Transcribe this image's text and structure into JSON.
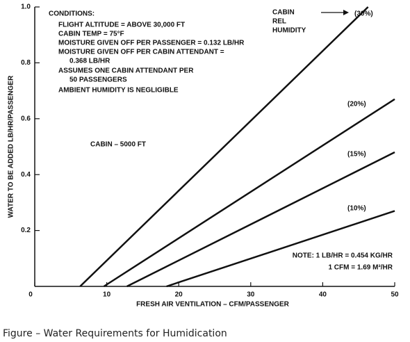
{
  "chart_data": {
    "type": "line",
    "x_label": "FRESH AIR VENTILATION – CFM/PASSENGER",
    "y_label": "WATER TO BE ADDED LB/HR/PASSENGER",
    "caption": "Figure – Water Requirements for Humidication",
    "legend_title": [
      "CABIN",
      "REL",
      "HUMIDITY"
    ],
    "conditions": [
      "CONDITIONS:",
      "FLIGHT ALTITUDE = ABOVE 30,000 FT",
      "CABIN TEMP = 75°F",
      "MOISTURE GIVEN OFF PER PASSENGER = 0.132 LB/HR",
      "MOISTURE GIVEN OFF PER CABIN ATTENDANT =",
      "0.368 LB/HR",
      "ASSUMES ONE CABIN ATTENDANT PER",
      "50 PASSENGERS",
      "AMBIENT HUMIDITY IS NEGLIGIBLE"
    ],
    "cabin_note": "CABIN – 5000 FT",
    "notes": [
      "NOTE: 1 LB/HR = 0.454 KG/HR",
      "1 CFM = 1.69 M³/HR"
    ],
    "xlim": [
      0,
      50
    ],
    "xticks": [
      0,
      10,
      20,
      30,
      40,
      50
    ],
    "ylim": [
      0,
      1
    ],
    "yticks": [
      0.2,
      0.4,
      0.6,
      0.8,
      {
        "value": 1,
        "label": "1.0"
      }
    ],
    "color": "#111111",
    "series": [
      {
        "name": "(30%)",
        "x": [
          6.3,
          46.3
        ],
        "values": [
          0,
          1
        ]
      },
      {
        "name": "(20%)",
        "x": [
          9.6,
          50
        ],
        "values": [
          0,
          0.67
        ]
      },
      {
        "name": "(15%)",
        "x": [
          12.8,
          50
        ],
        "values": [
          0,
          0.48
        ]
      },
      {
        "name": "(10%)",
        "x": [
          18.3,
          50
        ],
        "values": [
          0,
          0.27
        ]
      }
    ]
  }
}
